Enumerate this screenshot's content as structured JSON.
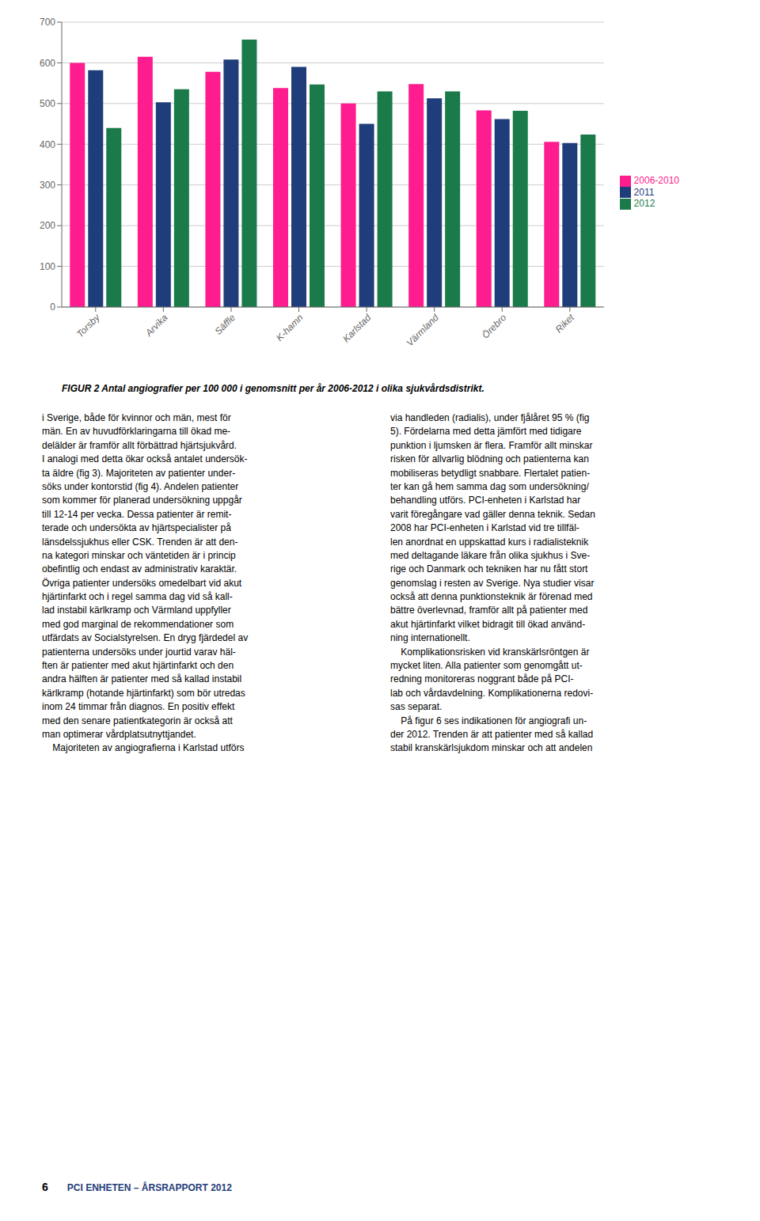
{
  "chart_data": {
    "type": "bar",
    "title": "FIGUR 2 Antal angiografier per 100 000 i genomsnitt per år 2006-2012 i olika sjukvårdsdistrikt.",
    "categories": [
      "Torsby",
      "Arvika",
      "Säffle",
      "K-hamn",
      "Karlstad",
      "Värmland",
      "Örebro",
      "Riket"
    ],
    "series": [
      {
        "name": "2006-2010",
        "color": "#FF1C8E",
        "values": [
          600,
          615,
          578,
          538,
          500,
          548,
          483,
          406
        ]
      },
      {
        "name": "2011",
        "color": "#1F3D7A",
        "values": [
          582,
          503,
          608,
          590,
          450,
          513,
          462,
          403
        ]
      },
      {
        "name": "2012",
        "color": "#1A7A4A",
        "values": [
          440,
          535,
          657,
          547,
          530,
          530,
          482,
          424
        ]
      }
    ],
    "ylim": [
      0,
      700
    ],
    "yticks": [
      0,
      100,
      200,
      300,
      400,
      500,
      600,
      700
    ],
    "grid": true,
    "legend": "right",
    "annotations": [
      "i Sverige, både för kvinnor och män, mest för\nmän. En av huvudförklaringarna till ökad me-\ndelälder är framför allt förbättrad hjärtsjukvård.\nI analogi med detta ökar också antalet undersök-\nta äldre (fig 3). Majoriteten av patienter under-\nsöks under kontorstid (fig 4). Andelen patienter\nsom kommer för planerad undersökning uppgår\ntill 12-14 per vecka. Dessa patienter är remit-\nterade och undersökta av hjärtspecialister på\nlänsdelssjukhus eller CSK. Trenden är att den-\nna kategori minskar och väntetiden är i princip\nobefintlig och endast av administrativ karaktär.\nÖvriga patienter undersöks omedelbart vid akut\nhjärtinfarkt och i regel samma dag vid så kall-\nlad instabil kärlkramp och Värmland uppfyller\nmed god marginal de rekommendationer som\nutfärdats av Socialstyrelsen. En dryg fjärdedel av\npatienterna undersöks under jourtid varav häl-\nften är patienter med akut hjärtinfarkt och den\nandra hälften är patienter med så kallad instabil\nkärlkramp (hotande hjärtinfarkt) som bör utredas\ninom 24 timmar från diagnos. En positiv effekt\nmed den senare patientkategorin är också att\nman optimerar vårdplatsutnyttjandet.\n    Majoriteten av angiografierna i Karlstad utförs",
      "via handleden (radialis), under fjålåret 95 % (fig\n5). Fördelarna med detta jämfört med tidigare\npunktion i ljumsken är flera. Framför allt minskar\nrisken för allvarlig blödning och patienterna kan\nmobiliseras betydligt snabbare. Flertalet patien-\nter kan gå hem samma dag som undersökning/\nbehandling utförs. PCI-enheten i Karlstad har\nvarit föregångare vad gäller denna teknik. Sedan\n2008 har PCI-enheten i Karlstad vid tre tillfäl-\nlen anordnat en uppskattad kurs i radialisteknik\nmed deltagande läkare från olika sjukhus i Sve-\nrige och Danmark och tekniken har nu fått stort\ngenomslag i resten av Sverige. Nya studier visar\nockså att denna punktionsteknik är förenad med\nbättre överlevnad, framför allt på patienter med\nakut hjärtinfarkt vilket bidragit till ökad använd-\nning internationellt.\n    Komplikationsrisken vid kranskärlsröntgen är\nmycket liten. Alla patienter som genomgått ut-\nredning monitoreras noggrant både på PCI-\nlab och vårdavdelning. Komplikationerna redovi-\nsas separat.\n    På figur 6 ses indikationen för angiografi un-\nder 2012. Trenden är att patienter med så kallad\nstabil kranskärlsjukdom minskar och att andelen",
      "6",
      "PCI ENHETEN – ÅRSRAPPORT 2012"
    ]
  }
}
